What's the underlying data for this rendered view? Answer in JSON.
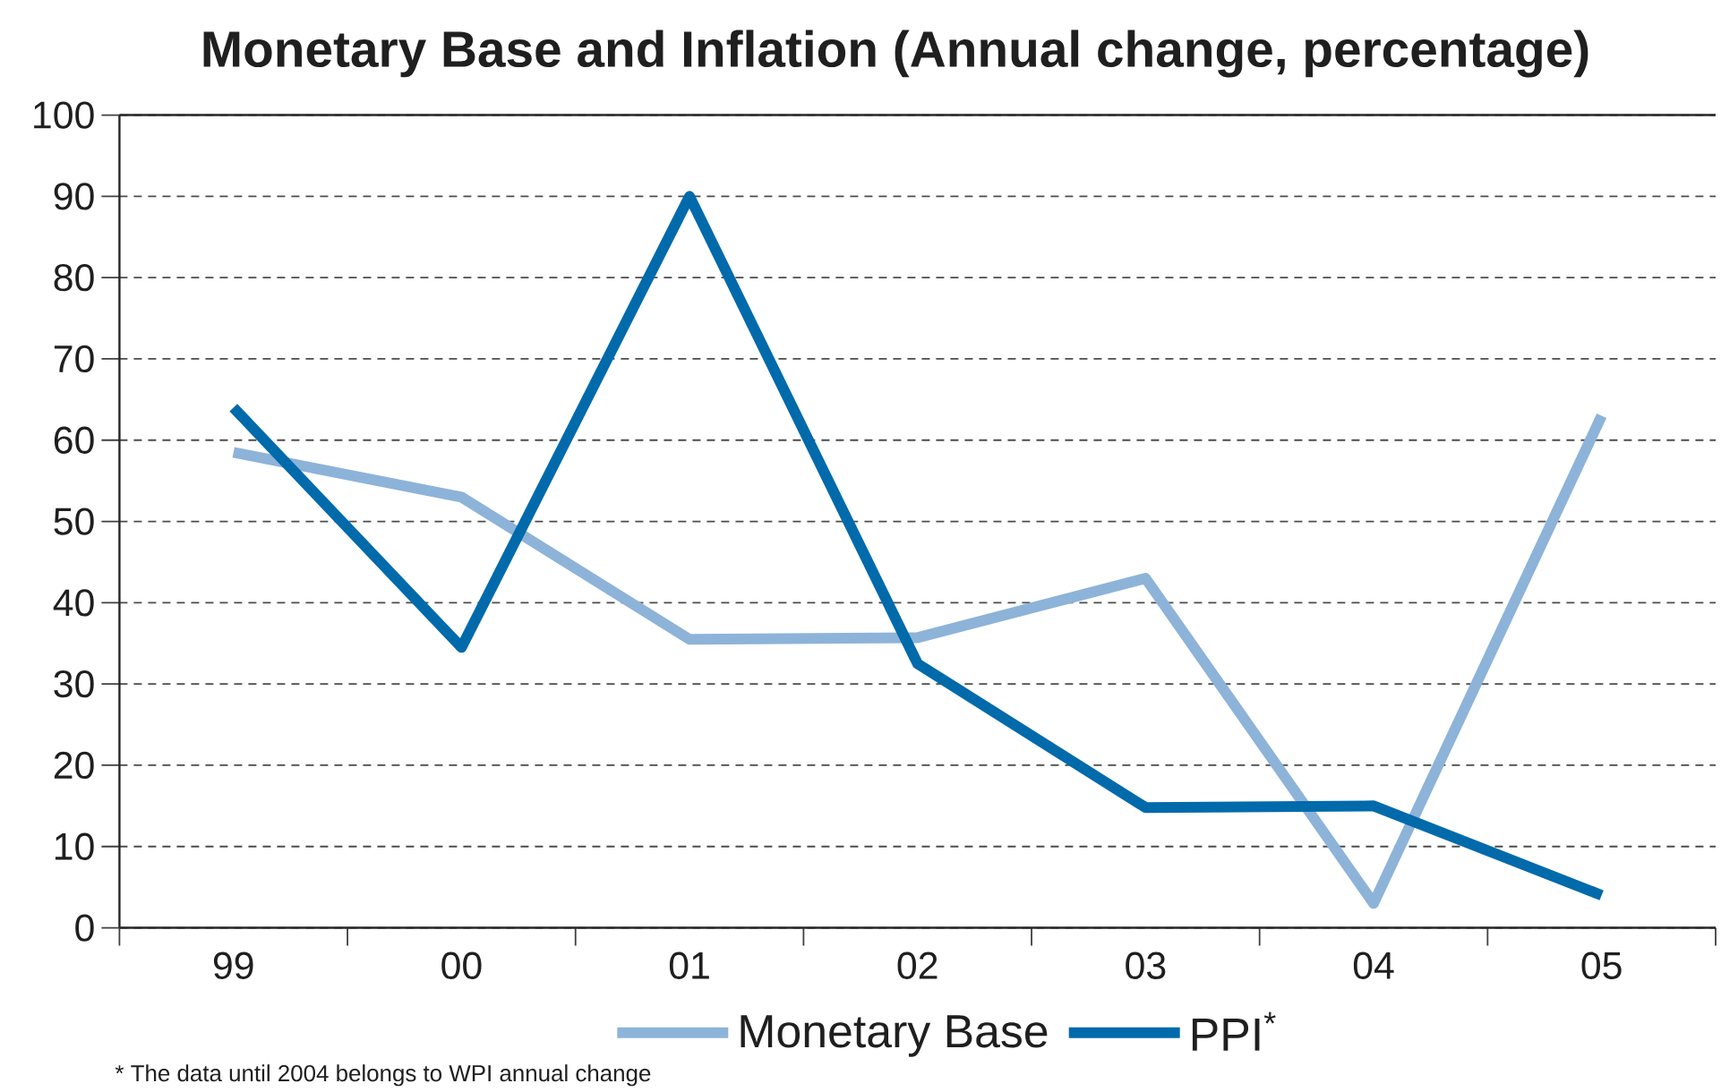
{
  "chart_data": {
    "type": "line",
    "title": "Monetary Base and Inflation (Annual change, percentage)",
    "categories": [
      "99",
      "00",
      "01",
      "02",
      "03",
      "04",
      "05"
    ],
    "series": [
      {
        "name": "Monetary Base",
        "color": "#8db3d9",
        "values": [
          58.5,
          53,
          35.5,
          35.7,
          43,
          3,
          63
        ]
      },
      {
        "name": "PPI$^{*}$",
        "color": "#006aab",
        "values": [
          64,
          34.5,
          90,
          32.5,
          14.8,
          15,
          4
        ]
      }
    ],
    "ylim": [
      0,
      100
    ],
    "yticks": [
      0,
      10,
      20,
      30,
      40,
      50,
      60,
      70,
      80,
      90,
      100
    ],
    "grid": "y",
    "legend": "bottom",
    "line_style": "solid",
    "annotations": [
      "* The data until 2004 belongs to WPI annual change"
    ]
  }
}
